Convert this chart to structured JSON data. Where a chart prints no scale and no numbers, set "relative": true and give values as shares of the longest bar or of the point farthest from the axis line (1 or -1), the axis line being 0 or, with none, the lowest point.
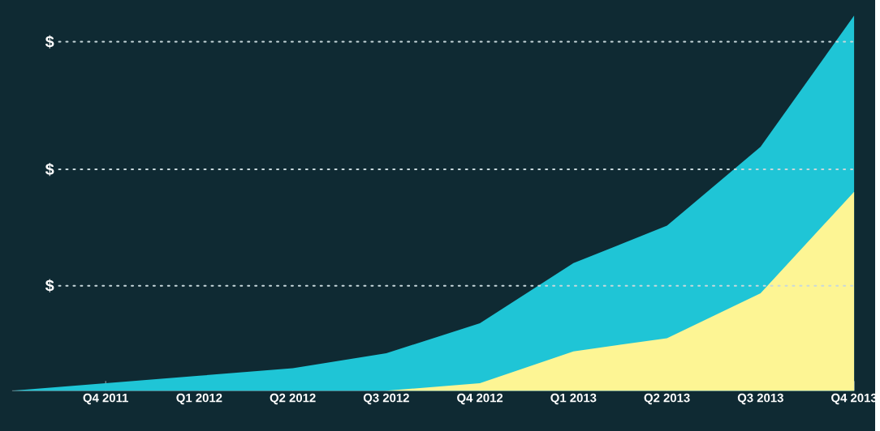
{
  "chart_data": {
    "type": "area",
    "relative": true,
    "categories": [
      null,
      "Q4 2011",
      "Q1 2012",
      "Q2 2012",
      "Q3 2012",
      "Q4 2012",
      "Q1 2013",
      "Q2 2013",
      "Q3 2013",
      "Q4 2013"
    ],
    "series": [
      {
        "color": "#1fc5d6",
        "values": [
          0,
          0.02,
          0.04,
          0.06,
          0.1,
          0.18,
          0.34,
          0.44,
          0.65,
          1.0
        ]
      },
      {
        "color": "#fdf594",
        "values": [
          null,
          null,
          null,
          null,
          0,
          0.02,
          0.105,
          0.14,
          0.26,
          0.53
        ]
      }
    ],
    "ref_lines": [
      {
        "axis": "y",
        "value": 0.93,
        "label": "$",
        "color": "#c8d8dc",
        "line_style": "dotted"
      },
      {
        "axis": "y",
        "value": 0.59,
        "label": "$",
        "color": "#c8d8dc",
        "line_style": "dotted"
      },
      {
        "axis": "y",
        "value": 0.28,
        "label": "$",
        "color": "#c8d8dc",
        "line_style": "dotted"
      }
    ]
  }
}
